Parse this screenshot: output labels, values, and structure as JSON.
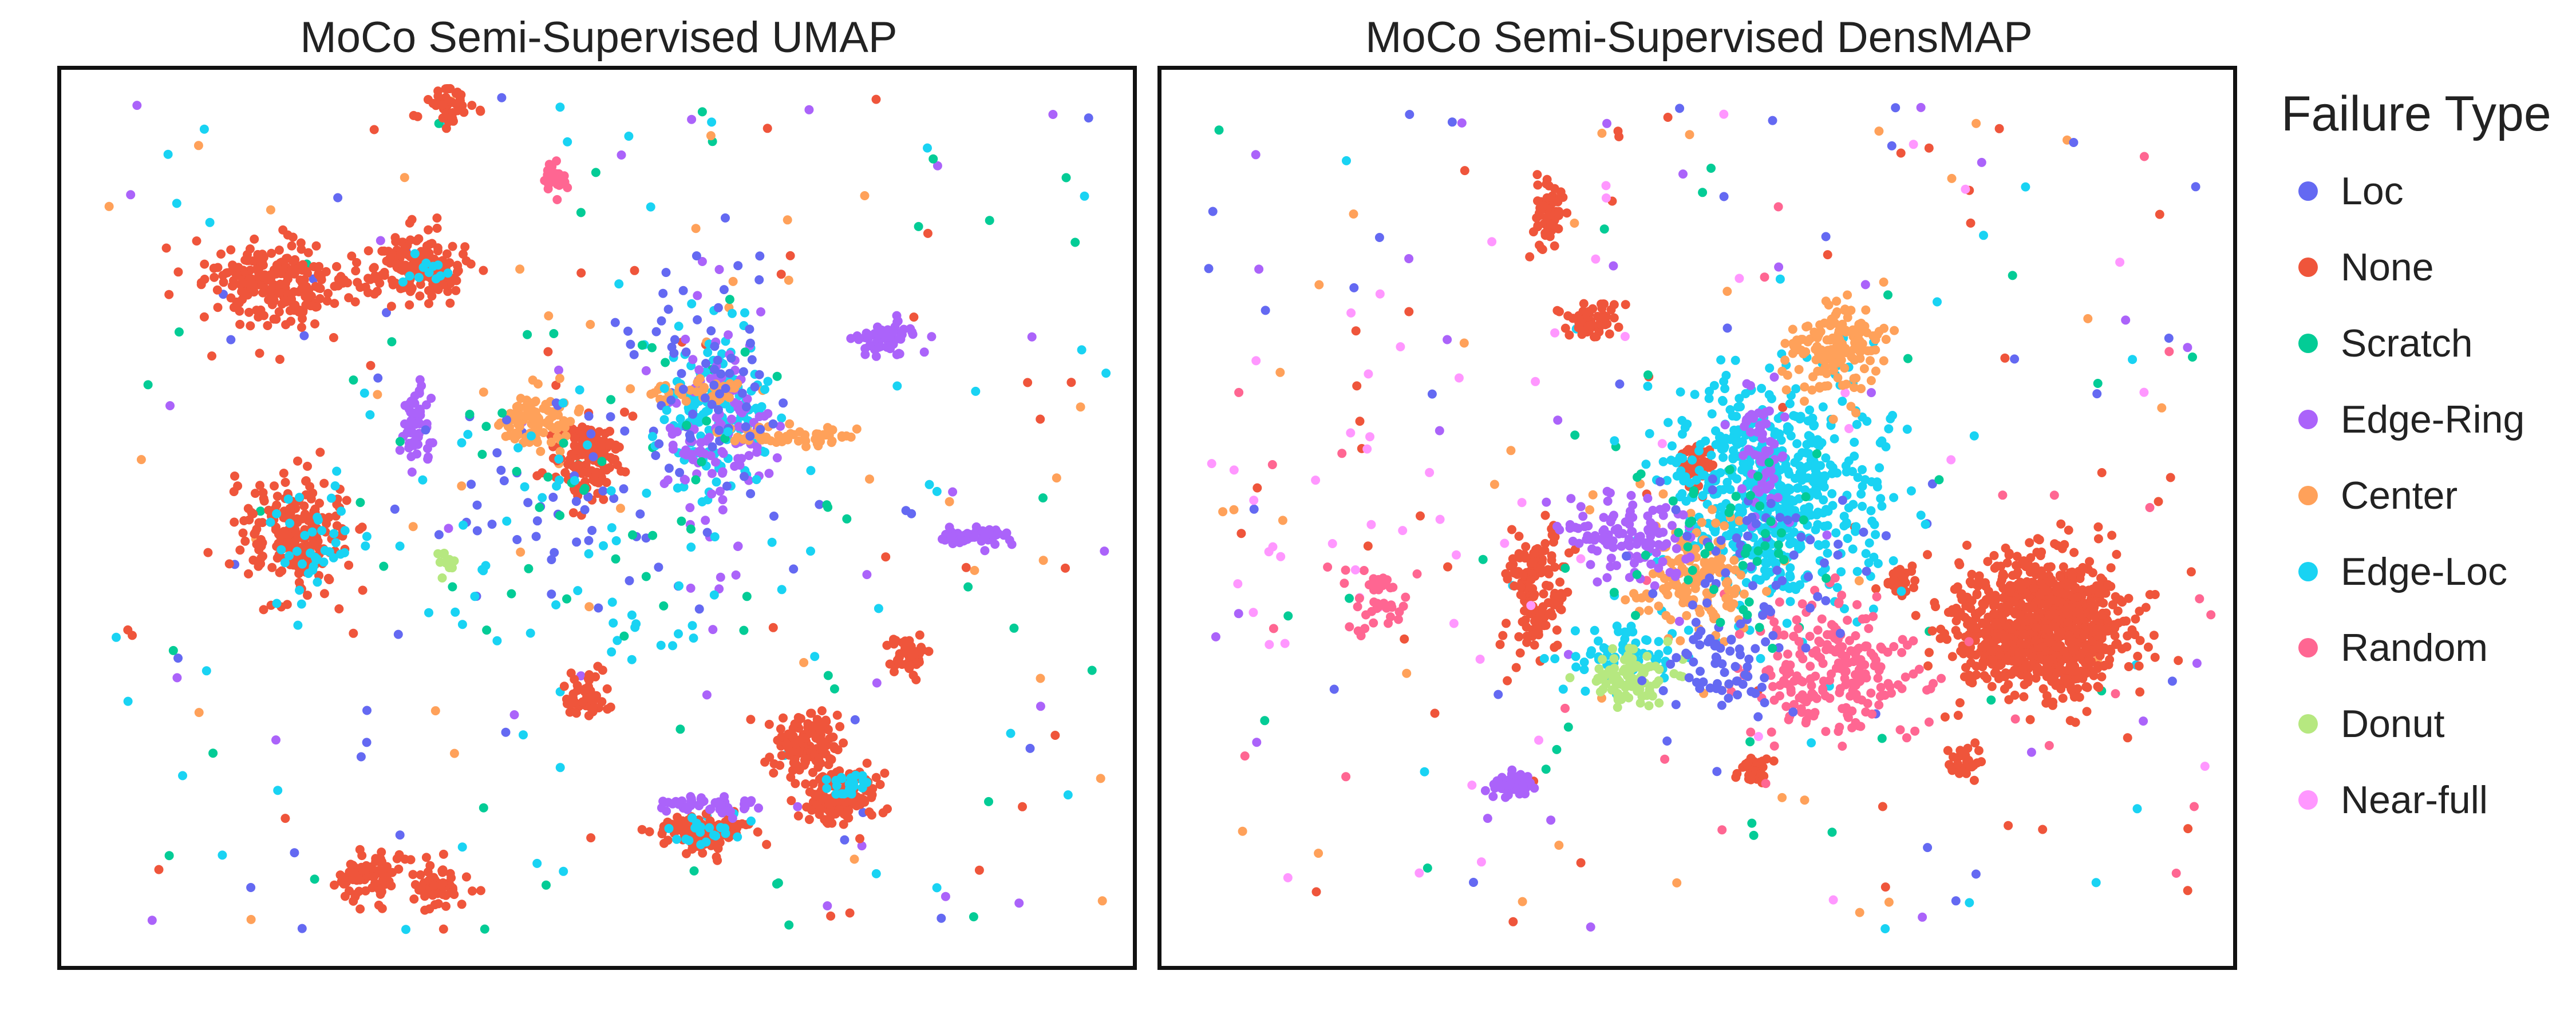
{
  "legend": {
    "title": "Failure Type",
    "items": [
      {
        "label": "Loc",
        "color": "#6469f2"
      },
      {
        "label": "None",
        "color": "#ef553b"
      },
      {
        "label": "Scratch",
        "color": "#03cc96"
      },
      {
        "label": "Edge-Ring",
        "color": "#ab63fa"
      },
      {
        "label": "Center",
        "color": "#ffa15a"
      },
      {
        "label": "Edge-Loc",
        "color": "#19d3f3"
      },
      {
        "label": "Random",
        "color": "#ff6692"
      },
      {
        "label": "Donut",
        "color": "#b6e880"
      },
      {
        "label": "Near-full",
        "color": "#ff97ff"
      }
    ]
  },
  "chart_data": [
    {
      "type": "scatter",
      "title": "MoCo Semi-Supervised UMAP",
      "xlabel": "",
      "ylabel": "",
      "xlim": [
        0,
        100
      ],
      "ylim": [
        0,
        100
      ],
      "grid": false,
      "legend_position": "right",
      "clusters": [
        {
          "label": "None",
          "x": 36,
          "y": 96,
          "sx": 1.2,
          "sy": 1.0,
          "n": 45,
          "c": "#ef553b"
        },
        {
          "label": "None",
          "x": 33,
          "y": 78,
          "sx": 2.4,
          "sy": 1.8,
          "n": 160,
          "c": "#ef553b"
        },
        {
          "label": "None",
          "x": 20,
          "y": 76,
          "sx": 3.3,
          "sy": 2.4,
          "n": 240,
          "c": "#ef553b"
        },
        {
          "label": "None",
          "x": 22,
          "y": 48,
          "sx": 2.6,
          "sy": 3.6,
          "n": 200,
          "c": "#ef553b"
        },
        {
          "label": "None",
          "x": 49,
          "y": 57,
          "sx": 1.6,
          "sy": 2.4,
          "n": 140,
          "c": "#ef553b"
        },
        {
          "label": "None",
          "x": 69,
          "y": 25,
          "sx": 1.6,
          "sy": 1.8,
          "n": 130,
          "c": "#ef553b"
        },
        {
          "label": "None",
          "x": 73,
          "y": 19,
          "sx": 2.1,
          "sy": 1.6,
          "n": 150,
          "c": "#ef553b"
        },
        {
          "label": "None",
          "x": 60,
          "y": 15,
          "sx": 2.0,
          "sy": 1.0,
          "n": 110,
          "c": "#ef553b"
        },
        {
          "label": "None",
          "x": 29,
          "y": 10,
          "sx": 1.6,
          "sy": 1.4,
          "n": 80,
          "c": "#ef553b"
        },
        {
          "label": "None",
          "x": 35,
          "y": 9,
          "sx": 1.2,
          "sy": 1.4,
          "n": 60,
          "c": "#ef553b"
        },
        {
          "label": "None",
          "x": 49,
          "y": 30,
          "sx": 1.0,
          "sy": 1.4,
          "n": 50,
          "c": "#ef553b"
        },
        {
          "label": "None",
          "x": 79,
          "y": 35,
          "sx": 1.0,
          "sy": 1.2,
          "n": 40,
          "c": "#ef553b"
        },
        {
          "label": "Edge-Loc",
          "x": 23,
          "y": 47,
          "sx": 2.0,
          "sy": 2.8,
          "n": 40,
          "c": "#19d3f3"
        },
        {
          "label": "Edge-Loc",
          "x": 73,
          "y": 20,
          "sx": 1.5,
          "sy": 1.0,
          "n": 25,
          "c": "#19d3f3"
        },
        {
          "label": "Edge-Loc",
          "x": 60,
          "y": 15,
          "sx": 1.6,
          "sy": 0.8,
          "n": 20,
          "c": "#19d3f3"
        },
        {
          "label": "Edge-Loc",
          "x": 34,
          "y": 78,
          "sx": 1.2,
          "sy": 1.0,
          "n": 12,
          "c": "#19d3f3"
        },
        {
          "label": "Edge-Loc",
          "x": 61,
          "y": 62,
          "sx": 2.4,
          "sy": 4.5,
          "n": 150,
          "c": "#19d3f3"
        },
        {
          "label": "Edge-Ring",
          "x": 77,
          "y": 70,
          "sx": 1.3,
          "sy": 1.0,
          "n": 60,
          "c": "#ab63fa"
        },
        {
          "label": "Edge-Ring",
          "x": 33,
          "y": 60,
          "sx": 0.7,
          "sy": 2.3,
          "n": 60,
          "c": "#ab63fa"
        },
        {
          "label": "Edge-Ring",
          "x": 85,
          "y": 48,
          "sx": 1.8,
          "sy": 0.5,
          "n": 60,
          "c": "#ab63fa"
        },
        {
          "label": "Edge-Ring",
          "x": 61,
          "y": 18,
          "sx": 2.5,
          "sy": 0.5,
          "n": 50,
          "c": "#ab63fa"
        },
        {
          "label": "Edge-Ring",
          "x": 61,
          "y": 60,
          "sx": 2.5,
          "sy": 6.0,
          "n": 120,
          "c": "#ab63fa"
        },
        {
          "label": "Center",
          "x": 44,
          "y": 61,
          "sx": 1.8,
          "sy": 1.6,
          "n": 90,
          "c": "#ffa15a"
        },
        {
          "label": "Center",
          "x": 68,
          "y": 59,
          "sx": 3.0,
          "sy": 0.6,
          "n": 60,
          "c": "#ffa15a"
        },
        {
          "label": "Center",
          "x": 60,
          "y": 64,
          "sx": 3.0,
          "sy": 0.6,
          "n": 40,
          "c": "#ffa15a"
        },
        {
          "label": "Random",
          "x": 46,
          "y": 88,
          "sx": 0.6,
          "sy": 0.9,
          "n": 25,
          "c": "#ff6692"
        },
        {
          "label": "Loc",
          "x": 60,
          "y": 65,
          "sx": 4.0,
          "sy": 6.0,
          "n": 70,
          "c": "#6469f2"
        },
        {
          "label": "Loc",
          "x": 46,
          "y": 52,
          "sx": 8.0,
          "sy": 6.0,
          "n": 50,
          "c": "#6469f2"
        },
        {
          "label": "Scratch",
          "x": 50,
          "y": 55,
          "sx": 9.0,
          "sy": 10.0,
          "n": 40,
          "c": "#03cc96"
        },
        {
          "label": "Donut",
          "x": 36,
          "y": 45,
          "sx": 0.6,
          "sy": 0.6,
          "n": 15,
          "c": "#b6e880"
        },
        {
          "label": "Edge-Loc",
          "x": 50,
          "y": 48,
          "sx": 10.0,
          "sy": 10.0,
          "n": 60,
          "c": "#19d3f3"
        }
      ],
      "scatter_colors": [
        "#ef553b",
        "#ab63fa",
        "#6469f2",
        "#03cc96",
        "#19d3f3",
        "#ffa15a"
      ],
      "scatter_n": 240,
      "scatter_range": [
        [
          4,
          98
        ],
        [
          4,
          97
        ]
      ]
    },
    {
      "type": "scatter",
      "title": "MoCo Semi-Supervised DensMAP",
      "xlabel": "",
      "ylabel": "",
      "xlim": [
        0,
        100
      ],
      "ylim": [
        0,
        100
      ],
      "grid": false,
      "legend_position": "right",
      "clusters": [
        {
          "label": "None",
          "x": 82,
          "y": 38,
          "sx": 4.2,
          "sy": 3.8,
          "n": 900,
          "c": "#ef553b"
        },
        {
          "label": "None",
          "x": 35,
          "y": 42,
          "sx": 1.2,
          "sy": 4.0,
          "n": 140,
          "c": "#ef553b"
        },
        {
          "label": "None",
          "x": 40,
          "y": 72,
          "sx": 1.2,
          "sy": 1.0,
          "n": 60,
          "c": "#ef553b"
        },
        {
          "label": "None",
          "x": 36,
          "y": 84,
          "sx": 0.8,
          "sy": 2.0,
          "n": 60,
          "c": "#ef553b"
        },
        {
          "label": "None",
          "x": 69,
          "y": 43,
          "sx": 0.8,
          "sy": 1.0,
          "n": 40,
          "c": "#ef553b"
        },
        {
          "label": "None",
          "x": 55,
          "y": 22,
          "sx": 0.8,
          "sy": 0.9,
          "n": 40,
          "c": "#ef553b"
        },
        {
          "label": "None",
          "x": 75,
          "y": 23,
          "sx": 0.7,
          "sy": 1.0,
          "n": 30,
          "c": "#ef553b"
        },
        {
          "label": "None",
          "x": 50,
          "y": 56,
          "sx": 0.8,
          "sy": 1.8,
          "n": 40,
          "c": "#ef553b"
        },
        {
          "label": "Edge-Loc",
          "x": 57,
          "y": 53,
          "sx": 5.0,
          "sy": 6.5,
          "n": 600,
          "c": "#19d3f3"
        },
        {
          "label": "Edge-Loc",
          "x": 43,
          "y": 35,
          "sx": 3.0,
          "sy": 2.0,
          "n": 60,
          "c": "#19d3f3"
        },
        {
          "label": "Center",
          "x": 63,
          "y": 69,
          "sx": 2.5,
          "sy": 2.5,
          "n": 160,
          "c": "#ffa15a"
        },
        {
          "label": "Center",
          "x": 50,
          "y": 43,
          "sx": 2.5,
          "sy": 3.0,
          "n": 140,
          "c": "#ffa15a"
        },
        {
          "label": "Random",
          "x": 63,
          "y": 33,
          "sx": 4.0,
          "sy": 3.5,
          "n": 220,
          "c": "#ff6692"
        },
        {
          "label": "Random",
          "x": 20,
          "y": 41,
          "sx": 1.6,
          "sy": 2.0,
          "n": 40,
          "c": "#ff6692"
        },
        {
          "label": "Donut",
          "x": 44,
          "y": 32,
          "sx": 1.8,
          "sy": 1.5,
          "n": 90,
          "c": "#b6e880"
        },
        {
          "label": "Edge-Ring",
          "x": 44,
          "y": 48,
          "sx": 3.0,
          "sy": 2.0,
          "n": 120,
          "c": "#ab63fa"
        },
        {
          "label": "Edge-Ring",
          "x": 33,
          "y": 20,
          "sx": 1.0,
          "sy": 0.8,
          "n": 50,
          "c": "#ab63fa"
        },
        {
          "label": "Edge-Ring",
          "x": 56,
          "y": 58,
          "sx": 1.2,
          "sy": 4.0,
          "n": 60,
          "c": "#ab63fa"
        },
        {
          "label": "Loc",
          "x": 52,
          "y": 33,
          "sx": 3.0,
          "sy": 3.0,
          "n": 60,
          "c": "#6469f2"
        },
        {
          "label": "Loc",
          "x": 57,
          "y": 45,
          "sx": 5.0,
          "sy": 5.0,
          "n": 60,
          "c": "#6469f2"
        },
        {
          "label": "Scratch",
          "x": 52,
          "y": 48,
          "sx": 6.0,
          "sy": 6.0,
          "n": 50,
          "c": "#03cc96"
        },
        {
          "label": "Near-full",
          "x": 25,
          "y": 55,
          "sx": 10.0,
          "sy": 15.0,
          "n": 30,
          "c": "#ff97ff"
        }
      ],
      "scatter_colors": [
        "#ef553b",
        "#ab63fa",
        "#6469f2",
        "#03cc96",
        "#19d3f3",
        "#ff97ff",
        "#ff6692",
        "#ffa15a"
      ],
      "scatter_n": 260,
      "scatter_range": [
        [
          4,
          98
        ],
        [
          4,
          97
        ]
      ]
    }
  ]
}
